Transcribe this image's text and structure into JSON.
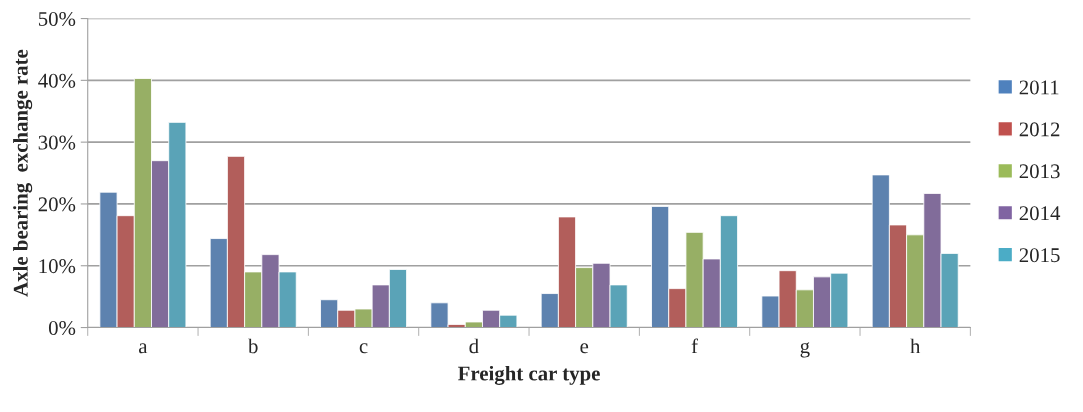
{
  "chart_data": {
    "type": "bar",
    "xlabel": "Freight car type",
    "ylabel": "Axle bearing  exchange rate",
    "categories": [
      "a",
      "b",
      "c",
      "d",
      "e",
      "f",
      "g",
      "h"
    ],
    "series": [
      {
        "name": "2011",
        "color": "#4f81bd",
        "values": [
          21.9,
          14.4,
          4.5,
          4.0,
          5.5,
          19.6,
          5.1,
          24.7
        ]
      },
      {
        "name": "2012",
        "color": "#c0504d",
        "values": [
          18.1,
          27.7,
          2.8,
          0.5,
          17.9,
          6.3,
          9.2,
          16.6
        ]
      },
      {
        "name": "2013",
        "color": "#9bbb59",
        "values": [
          40.3,
          9.0,
          3.0,
          0.9,
          9.7,
          15.4,
          6.1,
          15.0
        ]
      },
      {
        "name": "2014",
        "color": "#8064a2",
        "values": [
          27.0,
          11.8,
          6.9,
          2.8,
          10.4,
          11.1,
          8.2,
          21.7
        ]
      },
      {
        "name": "2015",
        "color": "#4bacc6",
        "values": [
          33.2,
          9.0,
          9.4,
          2.0,
          6.9,
          18.1,
          8.8,
          12.0
        ]
      }
    ],
    "ylim": [
      0,
      50
    ],
    "yticks": [
      {
        "value": 0,
        "label": "0%"
      },
      {
        "value": 10,
        "label": "10%"
      },
      {
        "value": 20,
        "label": "20%"
      },
      {
        "value": 30,
        "label": "30%"
      },
      {
        "value": 40,
        "label": "40%"
      },
      {
        "value": 50,
        "label": "50%"
      }
    ],
    "grid": "y",
    "legend": "right"
  }
}
